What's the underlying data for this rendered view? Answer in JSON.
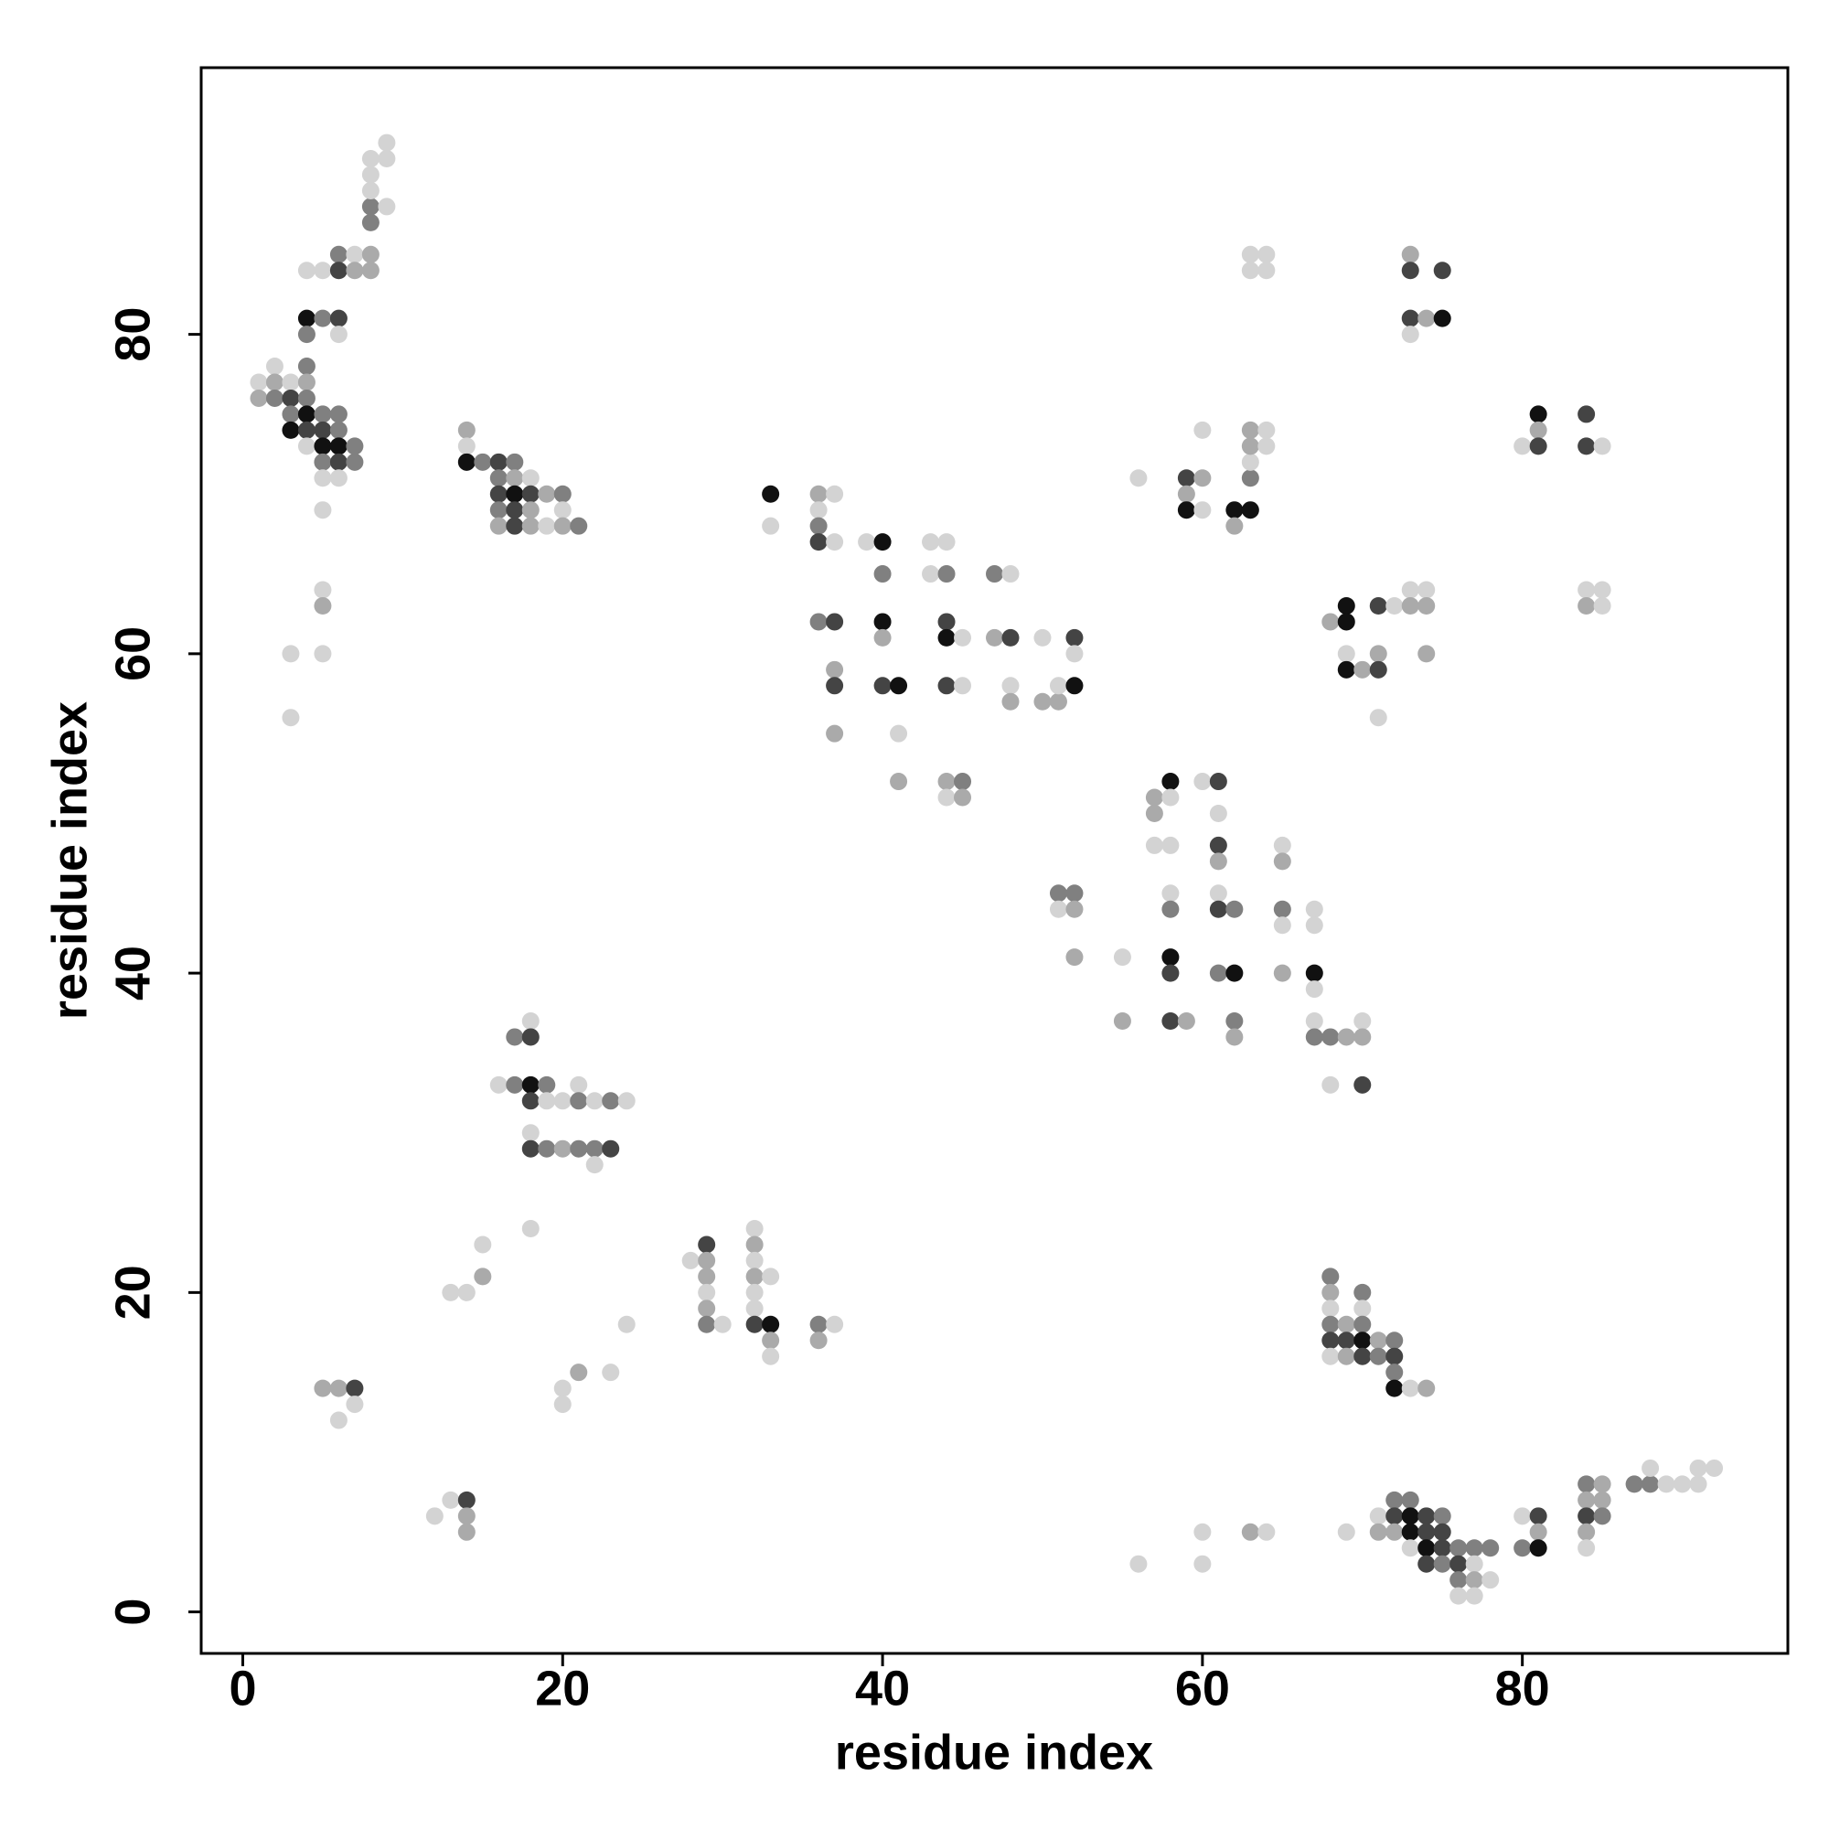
{
  "chart_data": {
    "type": "scatter",
    "xlabel": "residue index",
    "ylabel": "residue index",
    "xlim": [
      -2.6,
      96.6
    ],
    "ylim": [
      -2.6,
      96.7
    ],
    "xticks": [
      0,
      20,
      40,
      60,
      80
    ],
    "yticks": [
      0,
      20,
      40,
      60,
      80
    ],
    "grid": false,
    "x": [
      1,
      1,
      2,
      2,
      2,
      3,
      3,
      3,
      3,
      4,
      4,
      4,
      4,
      4,
      4,
      5,
      5,
      5,
      5,
      5,
      6,
      6,
      6,
      6,
      6,
      7,
      7,
      5,
      4,
      4,
      5,
      6,
      6,
      4,
      5,
      6,
      6,
      7,
      7,
      8,
      8,
      8,
      8,
      8,
      8,
      8,
      9,
      9,
      9,
      5,
      5,
      3,
      5,
      3,
      14,
      14,
      14,
      15,
      16,
      16,
      16,
      16,
      16,
      17,
      17,
      17,
      17,
      17,
      18,
      18,
      18,
      18,
      19,
      19,
      20,
      20,
      20,
      21,
      17,
      18,
      18,
      16,
      17,
      18,
      18,
      19,
      19,
      20,
      21,
      21,
      22,
      23,
      24,
      18,
      18,
      19,
      20,
      21,
      22,
      23,
      22,
      18,
      13,
      14,
      15,
      15,
      24,
      20,
      20,
      21,
      23,
      5,
      6,
      7,
      6,
      7,
      12,
      13,
      14,
      14,
      14,
      28,
      29,
      29,
      29,
      29,
      29,
      29,
      30,
      32,
      32,
      32,
      32,
      32,
      32,
      32,
      33,
      33,
      33,
      33,
      36,
      36,
      37,
      33,
      33,
      36,
      36,
      36,
      36,
      37,
      37,
      36,
      37,
      37,
      37,
      37,
      39,
      40,
      40,
      40,
      40,
      40,
      41,
      41,
      41,
      43,
      44,
      43,
      44,
      44,
      44,
      45,
      44,
      45,
      44,
      45,
      44,
      45,
      47,
      48,
      47,
      48,
      48,
      48,
      50,
      50,
      51,
      51,
      52,
      52,
      52,
      51,
      52,
      51,
      52,
      52,
      55,
      55,
      56,
      57,
      57,
      57,
      58,
      58,
      58,
      58,
      58,
      58,
      58,
      58,
      59,
      59,
      59,
      59,
      60,
      60,
      60,
      60,
      61,
      61,
      61,
      61,
      61,
      61,
      62,
      61,
      62,
      62,
      62,
      62,
      62,
      63,
      63,
      63,
      63,
      63,
      64,
      64,
      63,
      64,
      63,
      64,
      65,
      65,
      65,
      65,
      65,
      67,
      67,
      67,
      67,
      67,
      67,
      68,
      68,
      69,
      70,
      70,
      70,
      68,
      69,
      69,
      69,
      69,
      70,
      71,
      71,
      71,
      72,
      71,
      73,
      74,
      73,
      74,
      74,
      73,
      73,
      73,
      74,
      73,
      75,
      75,
      80,
      81,
      81,
      81,
      84,
      84,
      85,
      84,
      85,
      84,
      85,
      68,
      68,
      68,
      68,
      68,
      68,
      69,
      69,
      69,
      70,
      70,
      70,
      70,
      70,
      71,
      71,
      72,
      72,
      72,
      72,
      73,
      74,
      71,
      71,
      72,
      72,
      72,
      73,
      73,
      73,
      73,
      74,
      74,
      74,
      74,
      75,
      75,
      75,
      75,
      76,
      76,
      76,
      76,
      77,
      77,
      77,
      77,
      78,
      78,
      80,
      80,
      81,
      81,
      81,
      84,
      84,
      84,
      84,
      84,
      85,
      85,
      85,
      87,
      88,
      88,
      89,
      90,
      91,
      91,
      92,
      56,
      60,
      60,
      63,
      64,
      69
    ],
    "values": [
      77,
      76,
      78,
      77,
      76,
      77,
      76,
      75,
      74,
      78,
      77,
      76,
      75,
      74,
      73,
      75,
      74,
      73,
      72,
      71,
      75,
      74,
      73,
      72,
      71,
      73,
      72,
      69,
      81,
      80,
      81,
      81,
      80,
      84,
      84,
      85,
      84,
      85,
      84,
      85,
      84,
      88,
      87,
      89,
      90,
      91,
      91,
      92,
      88,
      64,
      63,
      60,
      60,
      56,
      74,
      73,
      72,
      72,
      72,
      71,
      70,
      69,
      68,
      72,
      71,
      70,
      69,
      68,
      71,
      70,
      69,
      68,
      70,
      68,
      70,
      69,
      68,
      68,
      36,
      37,
      36,
      33,
      33,
      33,
      32,
      33,
      32,
      32,
      33,
      32,
      32,
      32,
      32,
      30,
      29,
      29,
      29,
      29,
      29,
      29,
      28,
      24,
      20,
      20,
      21,
      23,
      18,
      14,
      13,
      15,
      15,
      14,
      14,
      14,
      12,
      13,
      6,
      7,
      7,
      6,
      5,
      22,
      23,
      22,
      21,
      20,
      19,
      18,
      18,
      24,
      23,
      22,
      21,
      20,
      19,
      18,
      21,
      18,
      17,
      16,
      18,
      17,
      18,
      70,
      68,
      70,
      69,
      68,
      67,
      70,
      67,
      62,
      62,
      59,
      58,
      55,
      67,
      67,
      65,
      62,
      61,
      58,
      58,
      55,
      52,
      67,
      67,
      65,
      65,
      62,
      61,
      61,
      58,
      58,
      52,
      52,
      51,
      51,
      65,
      65,
      61,
      61,
      58,
      57,
      61,
      57,
      57,
      58,
      61,
      60,
      58,
      45,
      45,
      44,
      44,
      41,
      41,
      37,
      71,
      51,
      50,
      48,
      52,
      51,
      48,
      45,
      44,
      41,
      40,
      37,
      37,
      71,
      70,
      69,
      74,
      71,
      69,
      52,
      52,
      50,
      48,
      47,
      45,
      44,
      44,
      40,
      40,
      37,
      36,
      69,
      68,
      69,
      71,
      72,
      73,
      74,
      74,
      73,
      85,
      85,
      84,
      84,
      48,
      47,
      44,
      43,
      40,
      44,
      43,
      40,
      39,
      37,
      36,
      36,
      33,
      36,
      37,
      36,
      33,
      62,
      63,
      62,
      60,
      59,
      59,
      60,
      59,
      63,
      63,
      56,
      64,
      64,
      63,
      63,
      60,
      85,
      84,
      81,
      81,
      80,
      84,
      81,
      73,
      75,
      74,
      73,
      75,
      73,
      73,
      64,
      64,
      63,
      63,
      21,
      20,
      19,
      18,
      17,
      16,
      18,
      17,
      16,
      20,
      19,
      18,
      17,
      16,
      17,
      16,
      17,
      16,
      15,
      14,
      14,
      14,
      6,
      5,
      7,
      6,
      5,
      7,
      6,
      5,
      4,
      6,
      5,
      4,
      3,
      6,
      5,
      4,
      3,
      4,
      3,
      2,
      1,
      4,
      3,
      2,
      1,
      4,
      2,
      6,
      4,
      6,
      5,
      4,
      8,
      7,
      6,
      5,
      4,
      8,
      7,
      6,
      8,
      8,
      9,
      8,
      8,
      9,
      8,
      9,
      3,
      5,
      3,
      5,
      5,
      5
    ],
    "colors": [
      "#d3d3d3",
      "#aaaaaa",
      "#d3d3d3",
      "#aaaaaa",
      "#808080",
      "#d3d3d3",
      "#444444",
      "#808080",
      "#111111",
      "#808080",
      "#aaaaaa",
      "#808080",
      "#111111",
      "#444444",
      "#d3d3d3",
      "#808080",
      "#444444",
      "#111111",
      "#808080",
      "#d3d3d3",
      "#808080",
      "#808080",
      "#111111",
      "#444444",
      "#d3d3d3",
      "#808080",
      "#808080",
      "#d3d3d3",
      "#111111",
      "#808080",
      "#808080",
      "#444444",
      "#d3d3d3",
      "#d3d3d3",
      "#d3d3d3",
      "#808080",
      "#444444",
      "#d3d3d3",
      "#aaaaaa",
      "#aaaaaa",
      "#aaaaaa",
      "#808080",
      "#808080",
      "#d3d3d3",
      "#d3d3d3",
      "#d3d3d3",
      "#d3d3d3",
      "#d3d3d3",
      "#d3d3d3",
      "#d3d3d3",
      "#aaaaaa",
      "#d3d3d3",
      "#d3d3d3",
      "#d3d3d3",
      "#aaaaaa",
      "#d3d3d3",
      "#111111",
      "#808080",
      "#444444",
      "#808080",
      "#444444",
      "#808080",
      "#aaaaaa",
      "#808080",
      "#aaaaaa",
      "#111111",
      "#444444",
      "#444444",
      "#d3d3d3",
      "#444444",
      "#aaaaaa",
      "#aaaaaa",
      "#aaaaaa",
      "#d3d3d3",
      "#808080",
      "#d3d3d3",
      "#aaaaaa",
      "#808080",
      "#808080",
      "#d3d3d3",
      "#444444",
      "#d3d3d3",
      "#808080",
      "#111111",
      "#444444",
      "#808080",
      "#d3d3d3",
      "#d3d3d3",
      "#d3d3d3",
      "#808080",
      "#d3d3d3",
      "#808080",
      "#d3d3d3",
      "#d3d3d3",
      "#444444",
      "#808080",
      "#aaaaaa",
      "#808080",
      "#808080",
      "#444444",
      "#d3d3d3",
      "#d3d3d3",
      "#d3d3d3",
      "#d3d3d3",
      "#aaaaaa",
      "#d3d3d3",
      "#d3d3d3",
      "#d3d3d3",
      "#d3d3d3",
      "#aaaaaa",
      "#d3d3d3",
      "#aaaaaa",
      "#aaaaaa",
      "#444444",
      "#d3d3d3",
      "#d3d3d3",
      "#d3d3d3",
      "#d3d3d3",
      "#444444",
      "#aaaaaa",
      "#aaaaaa",
      "#d3d3d3",
      "#444444",
      "#aaaaaa",
      "#aaaaaa",
      "#d3d3d3",
      "#aaaaaa",
      "#808080",
      "#d3d3d3",
      "#d3d3d3",
      "#aaaaaa",
      "#d3d3d3",
      "#aaaaaa",
      "#d3d3d3",
      "#d3d3d3",
      "#444444",
      "#d3d3d3",
      "#111111",
      "#aaaaaa",
      "#d3d3d3",
      "#808080",
      "#aaaaaa",
      "#d3d3d3",
      "#111111",
      "#d3d3d3",
      "#aaaaaa",
      "#d3d3d3",
      "#808080",
      "#444444",
      "#d3d3d3",
      "#d3d3d3",
      "#808080",
      "#444444",
      "#aaaaaa",
      "#444444",
      "#aaaaaa",
      "#d3d3d3",
      "#111111",
      "#808080",
      "#111111",
      "#aaaaaa",
      "#444444",
      "#111111",
      "#d3d3d3",
      "#aaaaaa",
      "#d3d3d3",
      "#d3d3d3",
      "#d3d3d3",
      "#808080",
      "#444444",
      "#111111",
      "#d3d3d3",
      "#444444",
      "#d3d3d3",
      "#aaaaaa",
      "#808080",
      "#d3d3d3",
      "#aaaaaa",
      "#808080",
      "#d3d3d3",
      "#aaaaaa",
      "#444444",
      "#d3d3d3",
      "#aaaaaa",
      "#d3d3d3",
      "#aaaaaa",
      "#aaaaaa",
      "#d3d3d3",
      "#444444",
      "#d3d3d3",
      "#111111",
      "#808080",
      "#808080",
      "#d3d3d3",
      "#aaaaaa",
      "#aaaaaa",
      "#d3d3d3",
      "#aaaaaa",
      "#d3d3d3",
      "#aaaaaa",
      "#aaaaaa",
      "#d3d3d3",
      "#111111",
      "#d3d3d3",
      "#d3d3d3",
      "#d3d3d3",
      "#808080",
      "#111111",
      "#444444",
      "#444444",
      "#aaaaaa",
      "#444444",
      "#aaaaaa",
      "#111111",
      "#d3d3d3",
      "#aaaaaa",
      "#d3d3d3",
      "#d3d3d3",
      "#444444",
      "#d3d3d3",
      "#444444",
      "#aaaaaa",
      "#d3d3d3",
      "#444444",
      "#808080",
      "#808080",
      "#111111",
      "#808080",
      "#aaaaaa",
      "#111111",
      "#aaaaaa",
      "#111111",
      "#808080",
      "#d3d3d3",
      "#aaaaaa",
      "#aaaaaa",
      "#d3d3d3",
      "#d3d3d3",
      "#d3d3d3",
      "#d3d3d3",
      "#d3d3d3",
      "#d3d3d3",
      "#d3d3d3",
      "#aaaaaa",
      "#808080",
      "#d3d3d3",
      "#aaaaaa",
      "#d3d3d3",
      "#d3d3d3",
      "#111111",
      "#d3d3d3",
      "#d3d3d3",
      "#808080",
      "#808080",
      "#d3d3d3",
      "#aaaaaa",
      "#d3d3d3",
      "#aaaaaa",
      "#444444",
      "#aaaaaa",
      "#111111",
      "#111111",
      "#d3d3d3",
      "#111111",
      "#aaaaaa",
      "#aaaaaa",
      "#444444",
      "#444444",
      "#d3d3d3",
      "#d3d3d3",
      "#d3d3d3",
      "#d3d3d3",
      "#aaaaaa",
      "#aaaaaa",
      "#aaaaaa",
      "#aaaaaa",
      "#444444",
      "#444444",
      "#aaaaaa",
      "#d3d3d3",
      "#444444",
      "#111111",
      "#d3d3d3",
      "#111111",
      "#aaaaaa",
      "#444444",
      "#444444",
      "#444444",
      "#d3d3d3",
      "#d3d3d3",
      "#d3d3d3",
      "#aaaaaa",
      "#d3d3d3",
      "#808080",
      "#aaaaaa",
      "#d3d3d3",
      "#808080",
      "#444444",
      "#d3d3d3",
      "#aaaaaa",
      "#444444",
      "#aaaaaa",
      "#808080",
      "#d3d3d3",
      "#808080",
      "#111111",
      "#444444",
      "#aaaaaa",
      "#808080",
      "#808080",
      "#444444",
      "#808080",
      "#111111",
      "#d3d3d3",
      "#aaaaaa",
      "#d3d3d3",
      "#aaaaaa",
      "#808080",
      "#444444",
      "#aaaaaa",
      "#808080",
      "#111111",
      "#111111",
      "#d3d3d3",
      "#444444",
      "#444444",
      "#111111",
      "#444444",
      "#808080",
      "#444444",
      "#444444",
      "#808080",
      "#808080",
      "#444444",
      "#808080",
      "#d3d3d3",
      "#808080",
      "#d3d3d3",
      "#aaaaaa",
      "#d3d3d3",
      "#808080",
      "#d3d3d3",
      "#d3d3d3",
      "#808080",
      "#444444",
      "#aaaaaa",
      "#111111",
      "#808080",
      "#aaaaaa",
      "#444444",
      "#aaaaaa",
      "#d3d3d3",
      "#aaaaaa",
      "#aaaaaa",
      "#808080",
      "#808080",
      "#808080",
      "#d3d3d3",
      "#d3d3d3",
      "#d3d3d3",
      "#d3d3d3",
      "#d3d3d3",
      "#d3d3d3",
      "#d3d3d3",
      "#d3d3d3",
      "#d3d3d3",
      "#aaaaaa",
      "#d3d3d3",
      "#d3d3d3"
    ]
  }
}
